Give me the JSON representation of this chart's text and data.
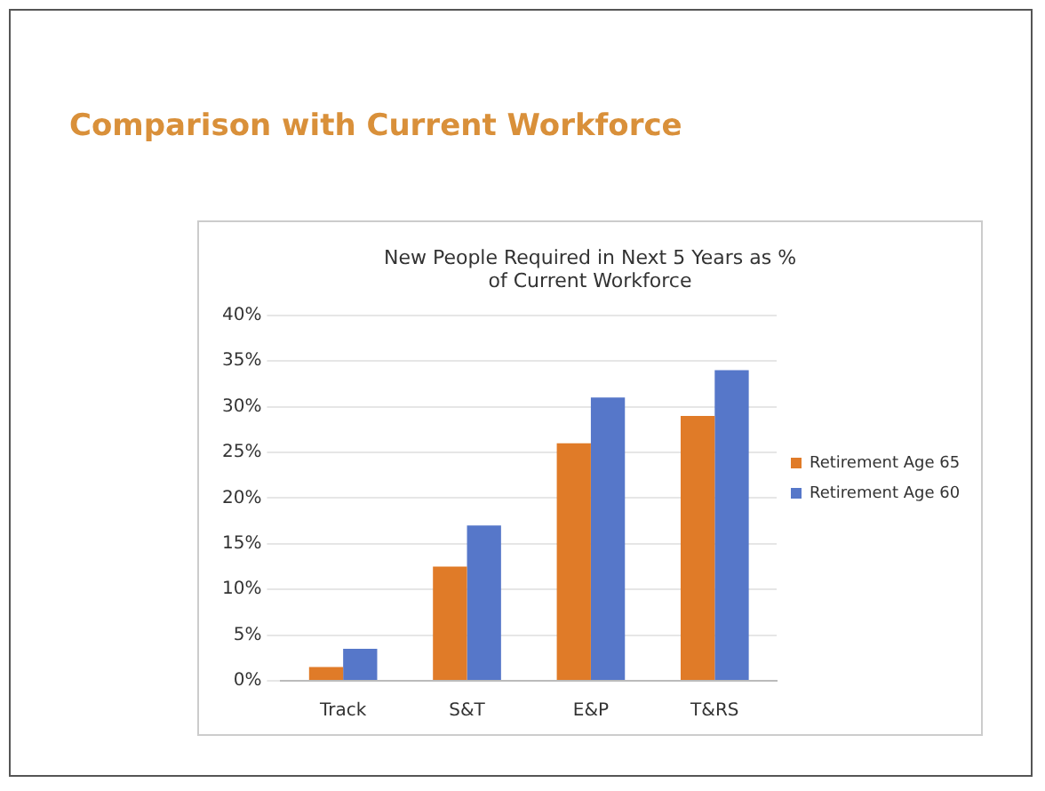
{
  "chart_data": {
    "type": "bar",
    "title": "Comparison with Current Workforce",
    "subtitle": "New People Required in Next 5 Years as % of Current Workforce",
    "categories": [
      "Track",
      "S&T",
      "E&P",
      "T&RS"
    ],
    "series": [
      {
        "name": "Retirement Age 65",
        "color": "#e07b28",
        "values": [
          1.5,
          12.5,
          26,
          29
        ]
      },
      {
        "name": "Retirement Age 60",
        "color": "#5677c9",
        "values": [
          3.5,
          17,
          31,
          34
        ]
      }
    ],
    "ylim": [
      0,
      40
    ],
    "yticks": [
      {
        "value": 0,
        "label": "0%"
      },
      {
        "value": 5,
        "label": "5%"
      },
      {
        "value": 10,
        "label": "10%"
      },
      {
        "value": 15,
        "label": "15%"
      },
      {
        "value": 20,
        "label": "20%"
      },
      {
        "value": 25,
        "label": "25%"
      },
      {
        "value": 30,
        "label": "30%"
      },
      {
        "value": 35,
        "label": "35%"
      },
      {
        "value": 40,
        "label": "40%"
      }
    ],
    "grid": "y",
    "legend": "right"
  }
}
